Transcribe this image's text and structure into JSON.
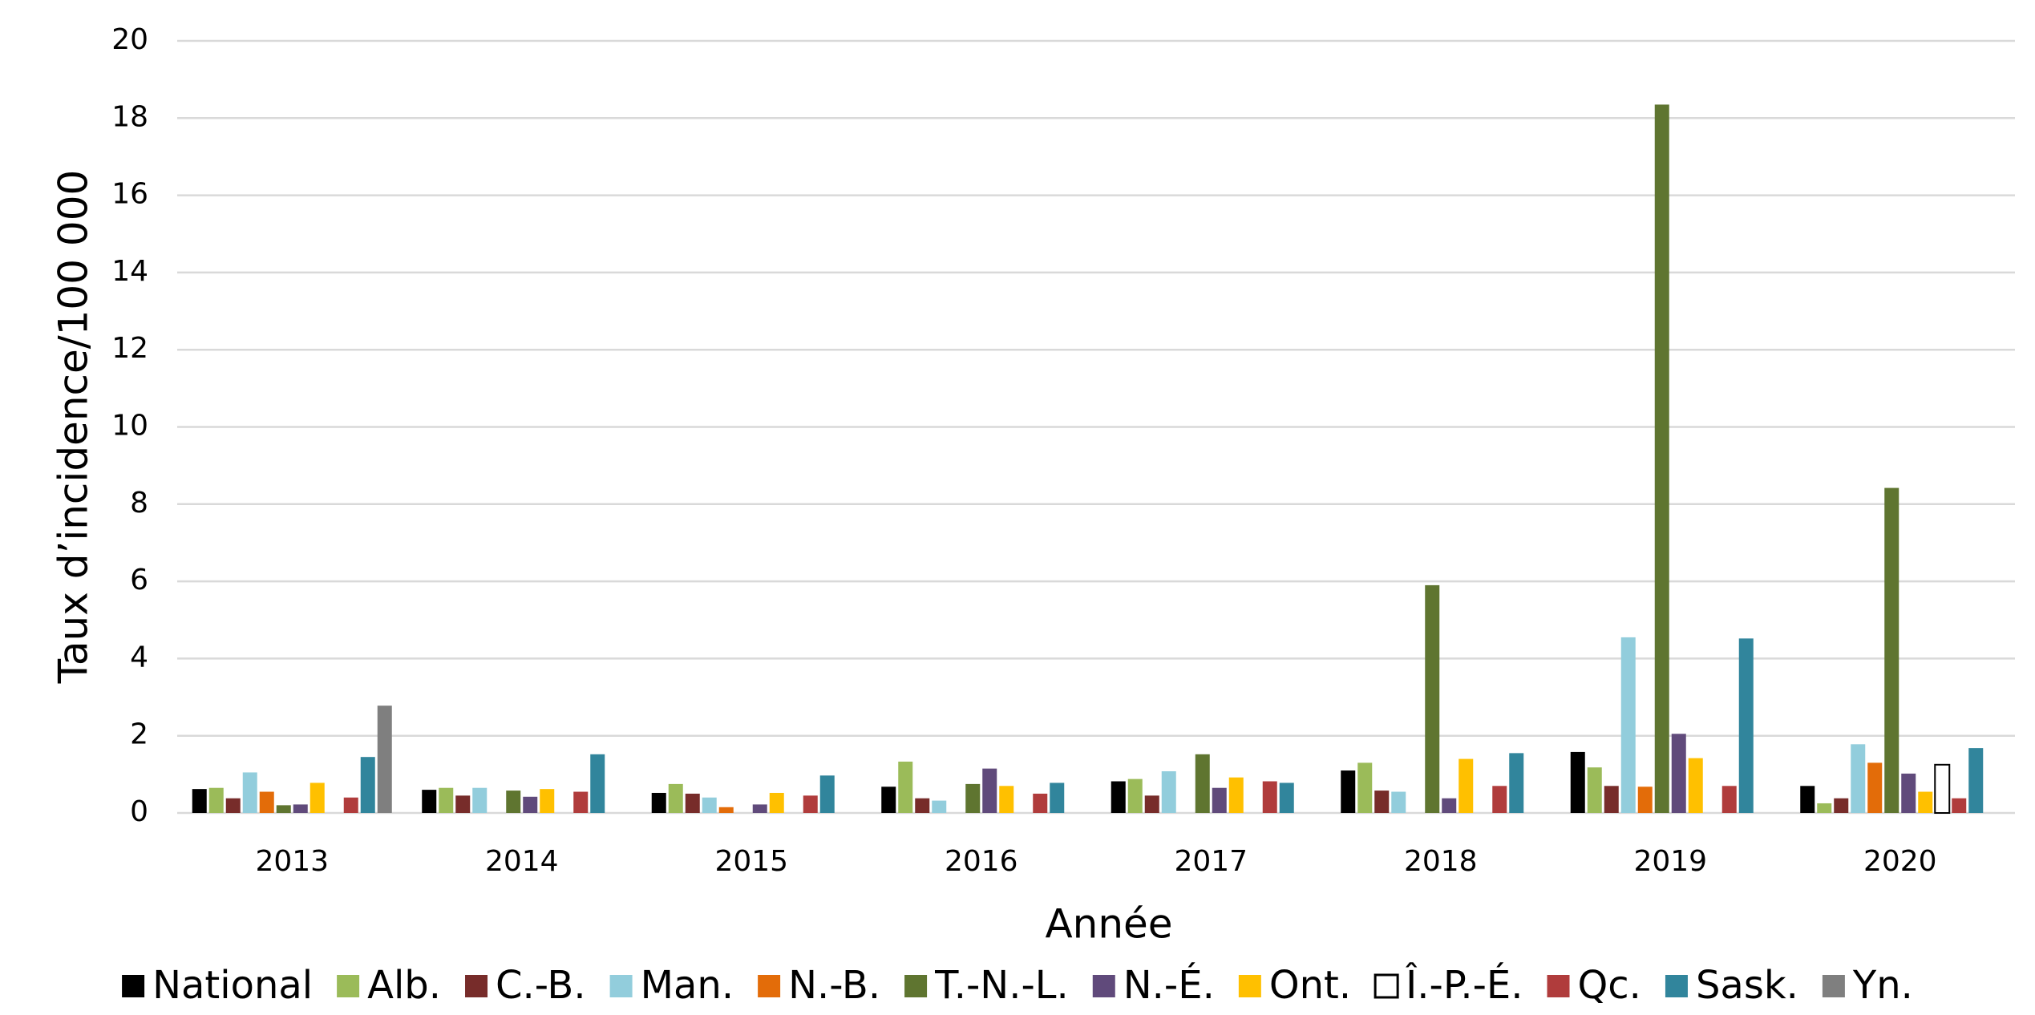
{
  "chart_data": {
    "type": "bar",
    "xlabel": "Année",
    "ylabel": "Taux d’incidence/100 000",
    "categories": [
      "2013",
      "2014",
      "2015",
      "2016",
      "2017",
      "2018",
      "2019",
      "2020"
    ],
    "ylim": [
      0,
      20
    ],
    "yticks": [
      0,
      2,
      4,
      6,
      8,
      10,
      12,
      14,
      16,
      18,
      20
    ],
    "grid": true,
    "legend": "bottom",
    "series": [
      {
        "name": "National",
        "color": "#000000",
        "values": [
          0.62,
          0.6,
          0.52,
          0.68,
          0.82,
          1.1,
          1.58,
          0.7
        ]
      },
      {
        "name": "Alb.",
        "color": "#9bbb59",
        "values": [
          0.65,
          0.65,
          0.75,
          1.33,
          0.88,
          1.3,
          1.18,
          0.25
        ]
      },
      {
        "name": "C.-B.",
        "color": "#772c2a",
        "values": [
          0.38,
          0.45,
          0.5,
          0.38,
          0.45,
          0.58,
          0.7,
          0.38
        ]
      },
      {
        "name": "Man.",
        "color": "#92cddc",
        "values": [
          1.05,
          0.65,
          0.4,
          0.32,
          1.08,
          0.55,
          4.55,
          1.78
        ]
      },
      {
        "name": "N.-B.",
        "color": "#e36c09",
        "values": [
          0.55,
          null,
          0.15,
          null,
          null,
          null,
          0.68,
          1.3
        ]
      },
      {
        "name": "T.-N.-L.",
        "color": "#5f7530",
        "values": [
          0.2,
          0.58,
          null,
          0.75,
          1.52,
          5.9,
          18.35,
          8.42
        ]
      },
      {
        "name": "N.-É.",
        "color": "#604a7b",
        "values": [
          0.22,
          0.42,
          0.22,
          1.15,
          0.65,
          0.38,
          2.05,
          1.02
        ]
      },
      {
        "name": "Ont.",
        "color": "#ffc000",
        "values": [
          0.78,
          0.62,
          0.52,
          0.7,
          0.92,
          1.4,
          1.42,
          0.55
        ]
      },
      {
        "name": "Î.-P.-É.",
        "color": "#ffffff",
        "edgecolor": "#000000",
        "values": [
          null,
          null,
          null,
          null,
          null,
          null,
          null,
          1.25
        ]
      },
      {
        "name": "Qc.",
        "color": "#b03c3c",
        "values": [
          0.4,
          0.55,
          0.45,
          0.5,
          0.82,
          0.7,
          0.7,
          0.38
        ]
      },
      {
        "name": "Sask.",
        "color": "#31859c",
        "values": [
          1.45,
          1.52,
          0.97,
          0.78,
          0.78,
          1.55,
          4.52,
          1.68
        ]
      },
      {
        "name": "Yn.",
        "color": "#7f7f7f",
        "values": [
          2.78,
          null,
          null,
          null,
          null,
          null,
          null,
          null
        ]
      }
    ]
  }
}
